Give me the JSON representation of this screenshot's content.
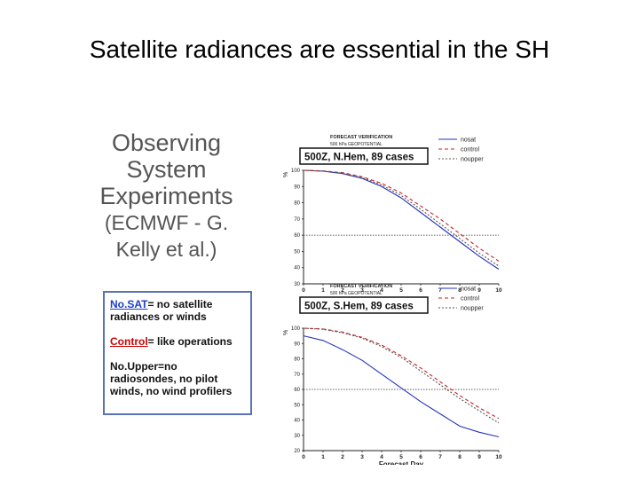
{
  "slide": {
    "title": "Satellite radiances are essential in the SH",
    "subtitle_line1": "Observing System Experiments",
    "subtitle_line2": "(ECMWF - G. Kelly et al.)"
  },
  "definitions": {
    "nosat_key": "No.SAT",
    "nosat_text": "= no satellite radiances or winds",
    "control_key": "Control",
    "control_text": "= like operations",
    "noupper_key": "No.Upper",
    "noupper_text": "=no radiosondes, no pilot winds, no wind profilers"
  },
  "colors": {
    "nosat": "#2233bb",
    "control": "#cc2222",
    "noupper": "#555555",
    "ref": "#333333"
  },
  "chart_data": [
    {
      "type": "line",
      "header": "FORECAST VERIFICATION",
      "subheader": "500 hPa GEOPOTENTIAL",
      "title": "500Z, N.Hem, 89 cases",
      "ylabel": "%",
      "xlabel": "",
      "x": [
        0,
        1,
        2,
        3,
        4,
        5,
        6,
        7,
        8,
        9,
        10
      ],
      "xlim": [
        0,
        10
      ],
      "ylim": [
        30,
        100
      ],
      "yticks": [
        30,
        40,
        50,
        60,
        70,
        80,
        90,
        100
      ],
      "reference_line": 60,
      "legend_position": "top-right",
      "series": [
        {
          "name": "nosat",
          "key": "nosat",
          "dash": "",
          "values": [
            100,
            99.5,
            98,
            95,
            90,
            83,
            74,
            65,
            56,
            47,
            39
          ]
        },
        {
          "name": "control",
          "key": "control",
          "dash": "4,3",
          "values": [
            100,
            99.6,
            98.5,
            96,
            92,
            86,
            78,
            70,
            61,
            52,
            44
          ]
        },
        {
          "name": "noupper",
          "key": "noupper",
          "dash": "2,2",
          "values": [
            100,
            99.5,
            98.2,
            95.5,
            91,
            84.5,
            76,
            67,
            58,
            49,
            41
          ]
        }
      ]
    },
    {
      "type": "line",
      "header": "FORECAST VERIFICATION",
      "subheader": "500 hPa GEOPOTENTIAL",
      "title": "500Z, S.Hem, 89 cases",
      "ylabel": "%",
      "xlabel": "Forecast Day",
      "x": [
        0,
        1,
        2,
        3,
        4,
        5,
        6,
        7,
        8,
        9,
        10
      ],
      "xlim": [
        0,
        10
      ],
      "ylim": [
        20,
        100
      ],
      "yticks": [
        20,
        30,
        40,
        50,
        60,
        70,
        80,
        90,
        100
      ],
      "reference_line": 60,
      "legend_position": "top-right",
      "series": [
        {
          "name": "nosat",
          "key": "nosat",
          "dash": "",
          "values": [
            95,
            92,
            86,
            79,
            70,
            61,
            52,
            44,
            36,
            32,
            29
          ]
        },
        {
          "name": "control",
          "key": "control",
          "dash": "4,3",
          "values": [
            100,
            99.5,
            97.5,
            94,
            89,
            82,
            74,
            65,
            56,
            48,
            41
          ]
        },
        {
          "name": "noupper",
          "key": "noupper",
          "dash": "2,2",
          "values": [
            100,
            99.3,
            97,
            93.5,
            88,
            81,
            72,
            63,
            54,
            46,
            38
          ]
        }
      ]
    }
  ]
}
